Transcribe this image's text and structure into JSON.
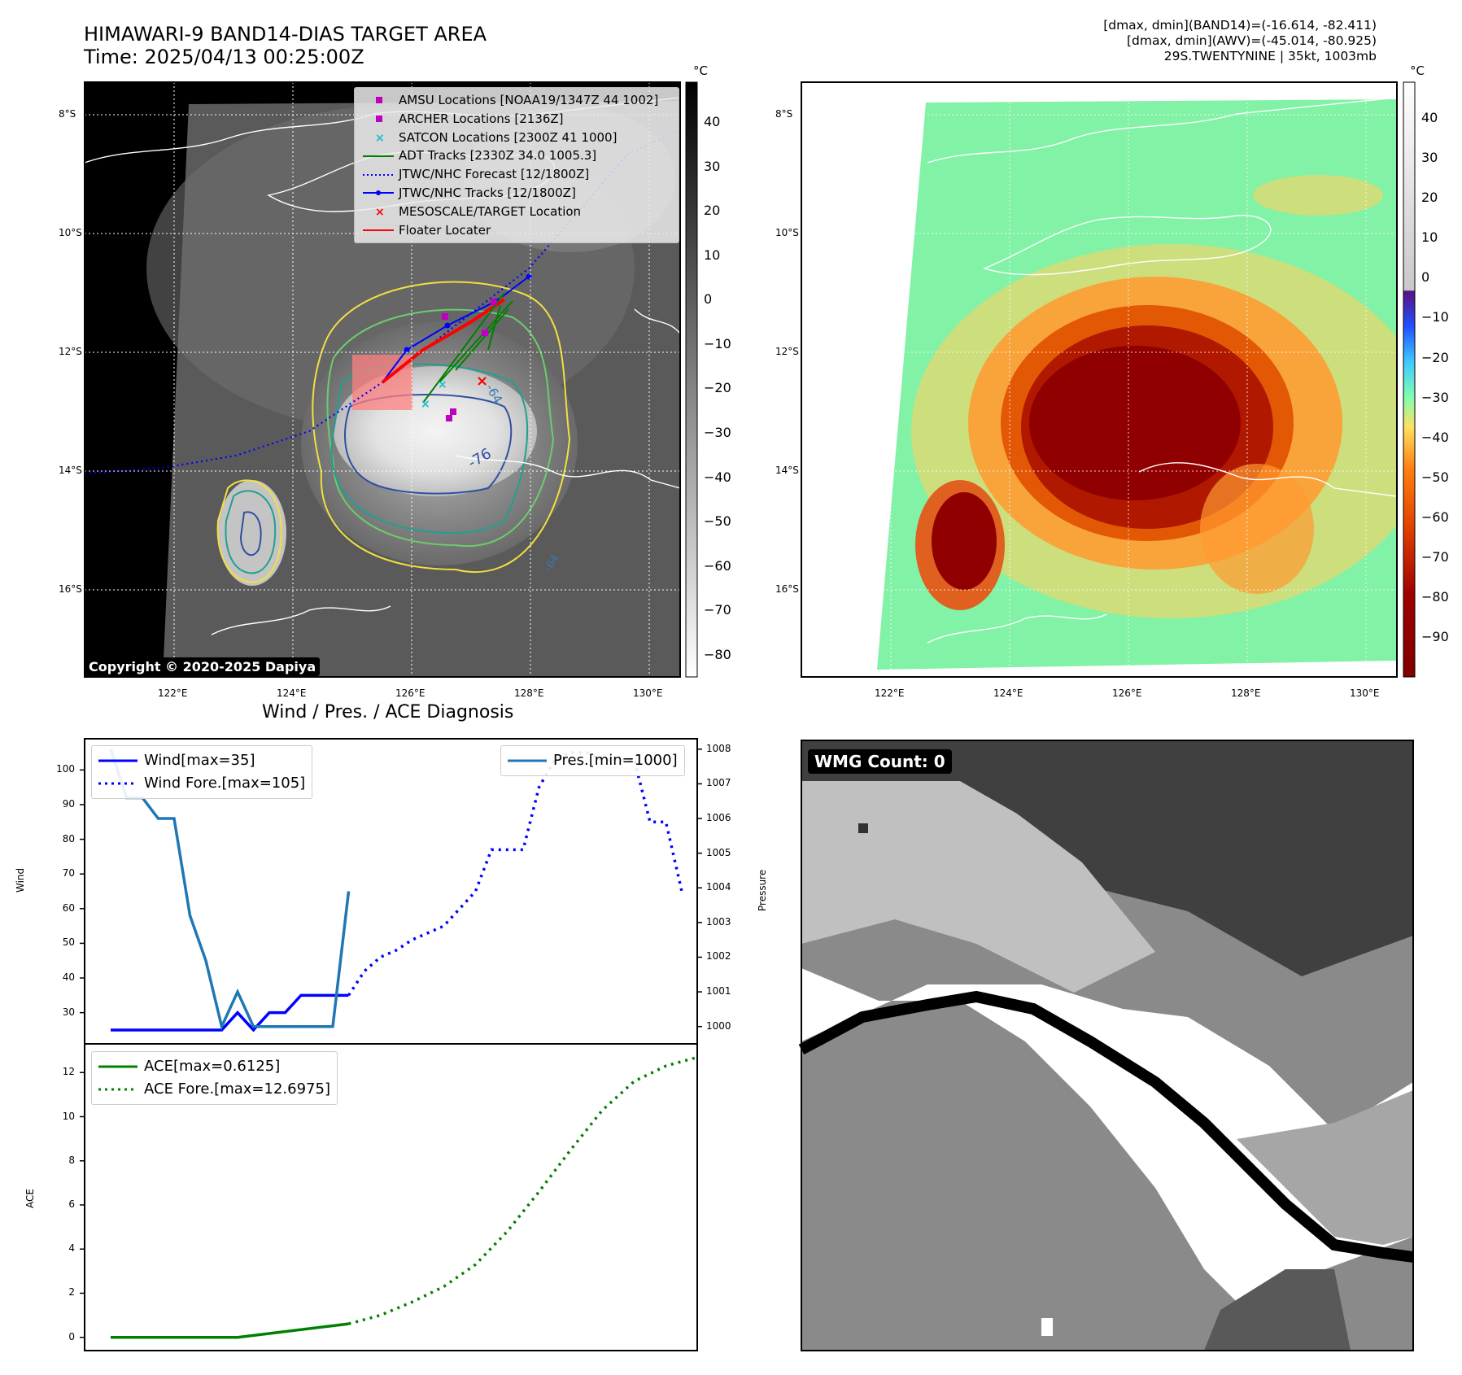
{
  "header": {
    "title": "HIMAWARI-9 BAND14-DIAS TARGET AREA",
    "time": "Time: 2025/04/13 00:25:00Z",
    "right_line1": "[dmax, dmin](BAND14)=(-16.614, -82.411)",
    "right_line2": "[dmax, dmin](AWV)=(-45.014, -80.925)",
    "right_line3": "29S.TWENTYNINE | 35kt, 1003mb"
  },
  "map_axes": {
    "lat_labels": [
      "8°S",
      "10°S",
      "12°S",
      "14°S",
      "16°S"
    ],
    "lon_labels": [
      "122°E",
      "124°E",
      "126°E",
      "128°E",
      "130°E"
    ],
    "lat_values": [
      -8,
      -10,
      -12,
      -14,
      -16
    ],
    "lon_values": [
      122,
      124,
      126,
      128,
      130
    ]
  },
  "map1": {
    "copyright": "Copyright © 2020-2025 Dapiya",
    "contour_labels": [
      "-64",
      "-76",
      "-64"
    ],
    "legend": [
      {
        "label": "AMSU Locations [NOAA19/1347Z 44 1002]",
        "symbol": "square",
        "color": "#c000c0"
      },
      {
        "label": "ARCHER Locations [2136Z]",
        "symbol": "square",
        "color": "#c000c0"
      },
      {
        "label": "SATCON Locations [2300Z 41 1000]",
        "symbol": "x",
        "color": "#17becf"
      },
      {
        "label": "ADT Tracks [2330Z 34.0 1005.3]",
        "symbol": "line",
        "color": "#008000"
      },
      {
        "label": "JTWC/NHC Forecast [12/1800Z]",
        "symbol": "dotted",
        "color": "#0000ff"
      },
      {
        "label": "JTWC/NHC Tracks [12/1800Z]",
        "symbol": "line-dot",
        "color": "#0000ff"
      },
      {
        "label": "MESOSCALE/TARGET Location",
        "symbol": "x",
        "color": "#ff0000"
      },
      {
        "label": "Floater Locater",
        "symbol": "line",
        "color": "#ff0000"
      }
    ]
  },
  "colorbar1": {
    "unit": "°C",
    "ticks": [
      "40",
      "30",
      "20",
      "10",
      "0",
      "−10",
      "−20",
      "−30",
      "−40",
      "−50",
      "−60",
      "−70",
      "−80"
    ],
    "tick_values": [
      40,
      30,
      20,
      10,
      0,
      -10,
      -20,
      -30,
      -40,
      -50,
      -60,
      -70,
      -80
    ],
    "range": [
      49,
      -85
    ]
  },
  "colorbar2": {
    "unit": "°C",
    "ticks": [
      "40",
      "30",
      "20",
      "10",
      "0",
      "−10",
      "−20",
      "−30",
      "−40",
      "−50",
      "−60",
      "−70",
      "−80",
      "−90"
    ],
    "tick_values": [
      40,
      30,
      20,
      10,
      0,
      -10,
      -20,
      -30,
      -40,
      -50,
      -60,
      -70,
      -80,
      -90
    ],
    "range": [
      49,
      -100
    ]
  },
  "wmg": {
    "label": "WMG Count: 0"
  },
  "chart_data": [
    {
      "type": "line",
      "title": "Wind / Pres. / ACE Diagnosis",
      "ylabel": "Wind",
      "ylim": [
        21,
        109
      ],
      "yticks": [
        30,
        40,
        50,
        60,
        70,
        80,
        90,
        100
      ],
      "series": [
        {
          "name": "Wind[max=35]",
          "style": "solid",
          "color": "#0000ff",
          "x": [
            0,
            1,
            2,
            3,
            4,
            5,
            6,
            7,
            8,
            9,
            10,
            11,
            12,
            13,
            14,
            15
          ],
          "values": [
            25,
            25,
            25,
            25,
            25,
            25,
            25,
            25,
            30,
            25,
            30,
            30,
            35,
            35,
            35,
            35
          ]
        },
        {
          "name": "Wind Fore.[max=105]",
          "style": "dotted",
          "color": "#0000ff",
          "x": [
            15,
            16,
            17,
            18,
            19,
            20,
            21,
            22,
            23,
            24,
            25,
            26,
            27,
            28,
            29,
            30,
            31,
            32,
            33,
            34,
            35,
            36
          ],
          "values": [
            35,
            42,
            46,
            48,
            51,
            53,
            55,
            60,
            65,
            77,
            77,
            77,
            95,
            103,
            105,
            105,
            103,
            103,
            103,
            85,
            85,
            65
          ]
        }
      ],
      "secondary": {
        "ylabel": "Pressure",
        "ylim": [
          999.5,
          1008.3
        ],
        "yticks": [
          1000,
          1001,
          1002,
          1003,
          1004,
          1005,
          1006,
          1007,
          1008
        ],
        "series": [
          {
            "name": "Pres.[min=1000]",
            "style": "solid",
            "color": "#1f77b4",
            "x": [
              0,
              1,
              2,
              3,
              4,
              5,
              6,
              7,
              8,
              9,
              10,
              11,
              12,
              13,
              14,
              15
            ],
            "values": [
              1008,
              1006.6,
              1006.6,
              1006,
              1006,
              1003.2,
              1001.9,
              1000,
              1001,
              1000,
              1000,
              1000,
              1000,
              1000,
              1000,
              1003.9
            ]
          }
        ]
      }
    },
    {
      "type": "line",
      "ylabel": "ACE",
      "ylim": [
        -0.6,
        13.3
      ],
      "yticks": [
        0,
        2,
        4,
        6,
        8,
        10,
        12
      ],
      "series": [
        {
          "name": "ACE[max=0.6125]",
          "style": "solid",
          "color": "#008000",
          "x": [
            0,
            8,
            15
          ],
          "values": [
            0,
            0,
            0.6125
          ]
        },
        {
          "name": "ACE Fore.[max=12.6975]",
          "style": "dotted",
          "color": "#008000",
          "x": [
            15,
            17,
            19,
            21,
            23,
            25,
            27,
            29,
            31,
            33,
            35,
            37
          ],
          "values": [
            0.6125,
            1.0,
            1.6,
            2.3,
            3.3,
            4.8,
            6.6,
            8.5,
            10.3,
            11.6,
            12.3,
            12.6975
          ]
        }
      ]
    }
  ]
}
